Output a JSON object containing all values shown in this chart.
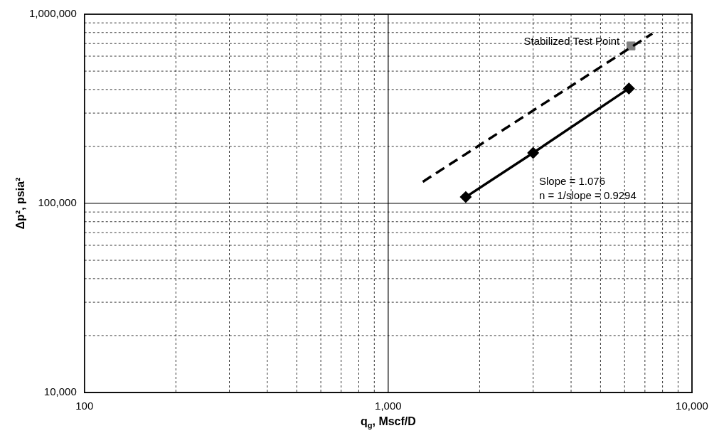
{
  "chart_data": {
    "type": "line",
    "xlabel": "q$_{g}$, Mscf/D",
    "ylabel": "Δp², psia²",
    "log": "xy",
    "grid": true,
    "xlim": [
      100,
      10000
    ],
    "xticks": [
      100,
      {
        "value": 200,
        "label": null
      },
      {
        "value": 300,
        "label": null
      },
      {
        "value": 400,
        "label": null
      },
      {
        "value": 500,
        "label": null
      },
      {
        "value": 600,
        "label": null
      },
      {
        "value": 700,
        "label": null
      },
      {
        "value": 800,
        "label": null
      },
      {
        "value": 900,
        "label": null
      },
      {
        "value": 1000,
        "label": "1,000"
      },
      {
        "value": 2000,
        "label": null
      },
      {
        "value": 3000,
        "label": null
      },
      {
        "value": 4000,
        "label": null
      },
      {
        "value": 5000,
        "label": null
      },
      {
        "value": 6000,
        "label": null
      },
      {
        "value": 7000,
        "label": null
      },
      {
        "value": 8000,
        "label": null
      },
      {
        "value": 9000,
        "label": null
      },
      {
        "value": 10000,
        "label": "10,000"
      }
    ],
    "ylim": [
      10000,
      1000000
    ],
    "yticks": [
      {
        "value": 10000,
        "label": "10,000"
      },
      {
        "value": 20000,
        "label": null
      },
      {
        "value": 30000,
        "label": null
      },
      {
        "value": 40000,
        "label": null
      },
      {
        "value": 50000,
        "label": null
      },
      {
        "value": 60000,
        "label": null
      },
      {
        "value": 70000,
        "label": null
      },
      {
        "value": 80000,
        "label": null
      },
      {
        "value": 90000,
        "label": null
      },
      {
        "value": 100000,
        "label": "100,000"
      },
      {
        "value": 200000,
        "label": null
      },
      {
        "value": 300000,
        "label": null
      },
      {
        "value": 400000,
        "label": null
      },
      {
        "value": 500000,
        "label": null
      },
      {
        "value": 600000,
        "label": null
      },
      {
        "value": 700000,
        "label": null
      },
      {
        "value": 800000,
        "label": null
      },
      {
        "value": 900000,
        "label": null
      },
      {
        "value": 1000000,
        "label": "1,000,000"
      }
    ],
    "series": [
      {
        "color": "#000000",
        "x": [
          1800,
          3000,
          6200
        ],
        "values": [
          108000,
          185000,
          405000
        ],
        "marker": "diamond",
        "line_style": "solid"
      },
      {
        "color": "#000000",
        "x": [
          1300,
          7400
        ],
        "values": [
          130000,
          790000
        ],
        "marker": "none",
        "line_style": "dashed"
      },
      {
        "type": "scatter",
        "color": "#808080",
        "x": [
          6300
        ],
        "values": [
          680000
        ],
        "marker": "square"
      }
    ],
    "annotations": [
      {
        "text": "Stabilized Test Point",
        "x": 6300,
        "y": 680000
      },
      "Slope = 1.076",
      "n = 1/slope = 0.9294"
    ]
  }
}
